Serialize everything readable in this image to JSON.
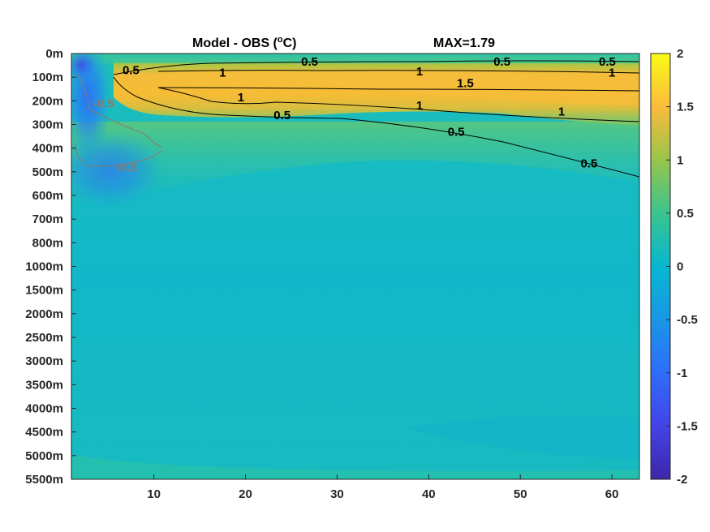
{
  "chart_data": {
    "type": "heatmap",
    "title": "Model - OBS (°C)",
    "title_parts": {
      "prefix": "Model - OBS (",
      "superscript": "o",
      "suffix": "C)"
    },
    "max_annotation": "MAX=1.79",
    "x_ticks": [
      10,
      20,
      30,
      40,
      50,
      60
    ],
    "x_range": [
      1,
      63
    ],
    "y_ticks": [
      "0m",
      "100m",
      "200m",
      "300m",
      "400m",
      "500m",
      "600m",
      "700m",
      "800m",
      "1000m",
      "1500m",
      "2000m",
      "2500m",
      "3000m",
      "3500m",
      "4000m",
      "4500m",
      "5000m",
      "5500m"
    ],
    "colorbar": {
      "ticks": [
        "2",
        "1.5",
        "1",
        "0.5",
        "0",
        "-0.5",
        "-1",
        "-1.5",
        "-2"
      ],
      "range": [
        -2,
        2
      ],
      "colormap": "parula"
    },
    "contour_levels": [
      -0.5,
      0.5,
      1,
      1.5
    ],
    "contour_labels": [
      {
        "text": "0.5",
        "x": 7.5,
        "level": 0.7
      },
      {
        "text": "1",
        "x": 17.5,
        "level": 0.8
      },
      {
        "text": "0.5",
        "x": 27,
        "level": 0.35
      },
      {
        "text": "1",
        "x": 39,
        "level": 0.75
      },
      {
        "text": "0.5",
        "x": 48,
        "level": 0.35
      },
      {
        "text": "0.5",
        "x": 59.5,
        "level": 0.35
      },
      {
        "text": "1",
        "x": 60,
        "level": 0.8
      },
      {
        "text": "1.5",
        "x": 44,
        "level": 1.25
      },
      {
        "text": "1",
        "x": 19.5,
        "level": 1.85
      },
      {
        "text": "0.5",
        "x": 24,
        "level": 2.6
      },
      {
        "text": "1",
        "x": 39,
        "level": 2.2
      },
      {
        "text": "1",
        "x": 54.5,
        "level": 2.45
      },
      {
        "text": "0.5",
        "x": 43,
        "level": 3.3
      },
      {
        "text": "0.5",
        "x": 57.5,
        "level": 4.65
      }
    ],
    "negative_contour_labels": [
      {
        "text": "-0.5",
        "x": 4.5,
        "level": 2.1
      },
      {
        "text": "-0.5",
        "x": 7,
        "level": 4.8
      }
    ]
  }
}
